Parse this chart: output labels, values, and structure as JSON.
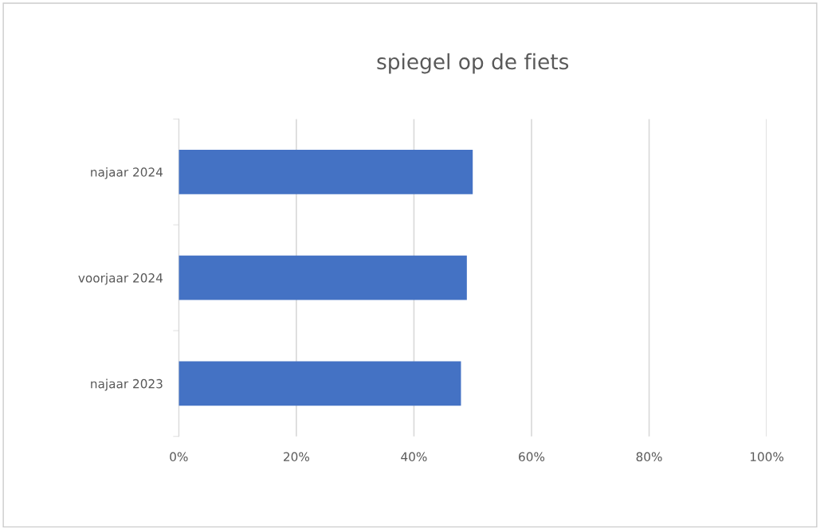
{
  "chart_data": {
    "type": "bar",
    "orientation": "horizontal",
    "title": "spiegel op de fiets",
    "categories": [
      "najaar 2024",
      "voorjaar 2024",
      "najaar 2023"
    ],
    "values": [
      50,
      49,
      48
    ],
    "color": "#4472c4",
    "xlim": [
      0,
      100
    ],
    "xticks": [
      {
        "value": 0,
        "label": "0%"
      },
      {
        "value": 20,
        "label": "20%"
      },
      {
        "value": 40,
        "label": "40%"
      },
      {
        "value": 60,
        "label": "60%"
      },
      {
        "value": 80,
        "label": "80%"
      },
      {
        "value": 100,
        "label": "100%"
      }
    ],
    "grid": "x",
    "legend": false
  }
}
